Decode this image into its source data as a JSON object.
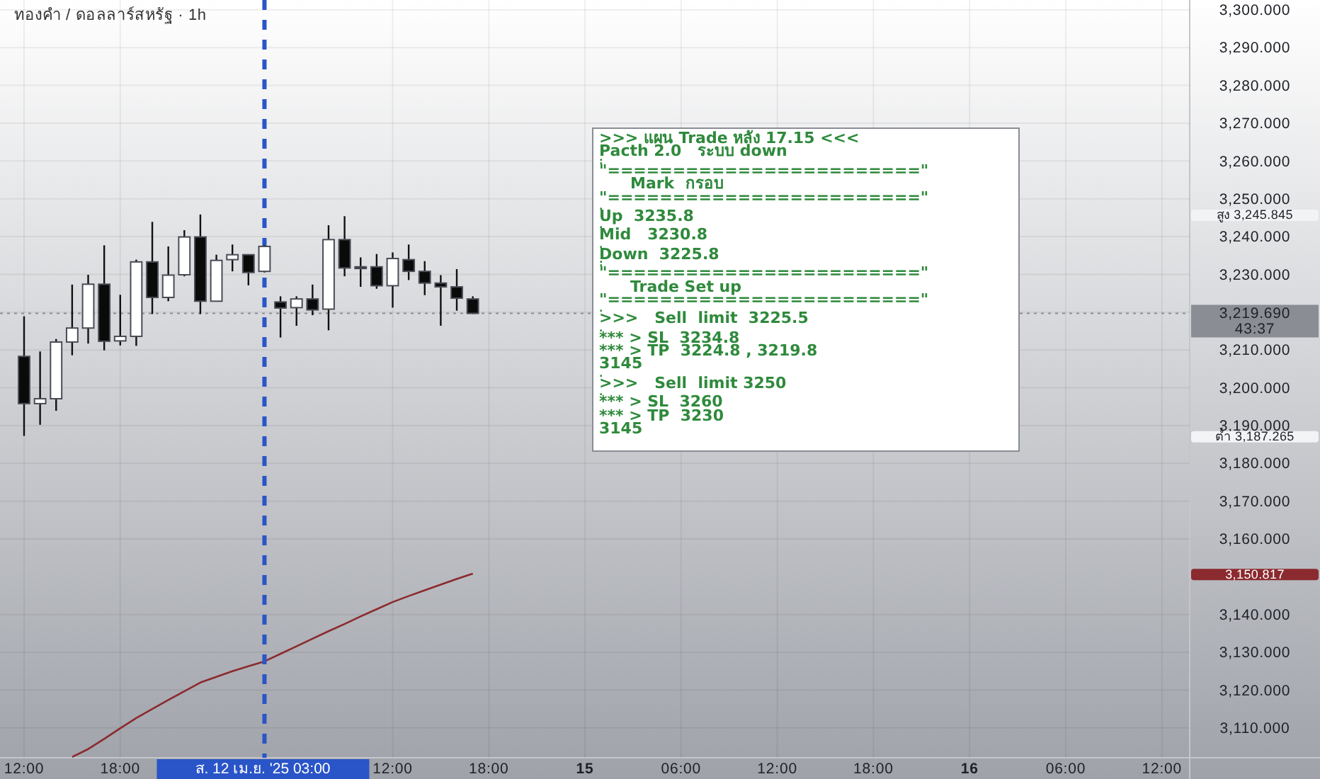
{
  "chart_data": {
    "type": "candlestick",
    "title": "ทองคำ / ดอลลาร์สหรัฐ · 1h",
    "categories": [
      "12:00",
      null,
      null,
      null,
      null,
      null,
      "18:00",
      null,
      null,
      null,
      null,
      null,
      null,
      null,
      null,
      "ส. 12 เม.ย. '25  03:00",
      null,
      null,
      null,
      null,
      null,
      null,
      null,
      "12:00",
      null,
      null,
      null,
      null,
      null,
      "18:00",
      null,
      null,
      null,
      null,
      null,
      "15",
      null,
      null,
      null,
      null,
      null,
      "06:00",
      null,
      null,
      null,
      null,
      null,
      "12:00",
      null,
      null,
      null,
      null,
      null,
      "18:00",
      null,
      null,
      null,
      null,
      null,
      "16",
      null,
      null,
      null,
      null,
      null,
      "06:00",
      null,
      null,
      null,
      null,
      null,
      "12:00",
      null
    ],
    "ohlc": [
      [
        3208.3,
        3218.9,
        3187.265,
        3195.8
      ],
      [
        3195.8,
        3209.6,
        3190.2,
        3197.1
      ],
      [
        3197.1,
        3212.9,
        3193.9,
        3212.1
      ],
      [
        3212.1,
        3227.3,
        3208.6,
        3215.8
      ],
      [
        3215.8,
        3229.9,
        3211.7,
        3227.4
      ],
      [
        3227.4,
        3237.7,
        3209.9,
        3212.3
      ],
      [
        3212.4,
        3224.6,
        3211.2,
        3213.6
      ],
      [
        3213.6,
        3233.9,
        3211.1,
        3233.3
      ],
      [
        3233.3,
        3243.9,
        3219.5,
        3223.9
      ],
      [
        3223.9,
        3237.4,
        3222.9,
        3229.8
      ],
      [
        3229.9,
        3241.7,
        3229.5,
        3239.9
      ],
      [
        3239.9,
        3245.845,
        3219.5,
        3222.9
      ],
      [
        3222.9,
        3235.2,
        3222.9,
        3233.7
      ],
      [
        3233.9,
        3237.9,
        3230.8,
        3235.2
      ],
      [
        3235.2,
        3235.2,
        3227.1,
        3230.5
      ],
      [
        3230.8,
        3237.7,
        3230.5,
        3237.4
      ],
      [
        3222.7,
        3224.2,
        3213.3,
        3221.1
      ],
      [
        3221.2,
        3224.2,
        3216.4,
        3223.5
      ],
      [
        3223.5,
        3227.3,
        3219.2,
        3220.6
      ],
      [
        3220.8,
        3243.0,
        3215.2,
        3239.2
      ],
      [
        3239.2,
        3245.4,
        3229.5,
        3231.7
      ],
      [
        3232.0,
        3234.5,
        3226.7,
        3231.7
      ],
      [
        3232.0,
        3235.4,
        3226.2,
        3227.0
      ],
      [
        3227.0,
        3235.8,
        3221.2,
        3234.2
      ],
      [
        3233.9,
        3237.9,
        3228.5,
        3230.8
      ],
      [
        3230.8,
        3233.5,
        3224.5,
        3227.7
      ],
      [
        3227.7,
        3229.8,
        3216.4,
        3226.7
      ],
      [
        3226.7,
        3231.4,
        3220.4,
        3223.7
      ],
      [
        3223.5,
        3224.2,
        3219.5,
        3219.69
      ],
      null,
      null,
      null,
      null,
      null,
      null,
      null,
      null,
      null,
      null,
      null,
      null,
      null,
      null,
      null,
      null,
      null,
      null,
      null,
      null,
      null,
      null,
      null,
      null,
      null,
      null,
      null,
      null,
      null,
      null,
      null,
      null,
      null,
      null,
      null,
      null,
      null,
      null,
      null,
      null,
      null,
      null,
      null,
      null
    ],
    "series": [
      {
        "type": "line",
        "color": "#8b2a2f",
        "values": [
          null,
          null,
          null,
          3102.3,
          3104.4,
          3107.1,
          3109.9,
          3112.6,
          3115.0,
          3117.4,
          3119.7,
          3122.0,
          3123.5,
          3125.0,
          3126.3,
          3127.6,
          3129.6,
          3131.6,
          3133.6,
          3135.6,
          3137.5,
          3139.5,
          3141.4,
          3143.3,
          3144.9,
          3146.4,
          3147.9,
          3149.4,
          3150.8,
          null,
          null,
          null,
          null,
          null,
          null,
          null,
          null,
          null,
          null,
          null,
          null,
          null,
          null,
          null,
          null,
          null,
          null,
          null,
          null,
          null,
          null,
          null,
          null,
          null,
          null,
          null,
          null,
          null,
          null,
          null,
          null,
          null,
          null,
          null,
          null,
          null,
          null,
          null,
          null,
          null,
          null,
          null,
          null
        ]
      }
    ],
    "ylim": [
      3102.1,
      3302.6
    ],
    "yticks": [
      {
        "value": 3110,
        "label": "3,110.000"
      },
      {
        "value": 3120,
        "label": "3,120.000"
      },
      {
        "value": 3130,
        "label": "3,130.000"
      },
      {
        "value": 3140,
        "label": "3,140.000"
      },
      {
        "value": 3150.817,
        "label": "3,150.817"
      },
      {
        "value": 3160,
        "label": "3,160.000"
      },
      {
        "value": 3170,
        "label": "3,170.000"
      },
      {
        "value": 3180,
        "label": "3,180.000"
      },
      {
        "value": 3187.265,
        "label": "ต่ำ 3,187.265"
      },
      {
        "value": 3190,
        "label": "3,190.000"
      },
      {
        "value": 3200,
        "label": "3,200.000"
      },
      {
        "value": 3210,
        "label": "3,210.000"
      },
      {
        "value": 3220,
        "label": null
      },
      {
        "value": 3230,
        "label": "3,230.000"
      },
      {
        "value": 3240,
        "label": "3,240.000"
      },
      {
        "value": 3245.845,
        "label": "สูง 3,245.845"
      },
      {
        "value": 3250,
        "label": "3,250.000"
      },
      {
        "value": 3260,
        "label": "3,260.000"
      },
      {
        "value": 3270,
        "label": "3,270.000"
      },
      {
        "value": 3280,
        "label": "3,280.000"
      },
      {
        "value": 3290,
        "label": "3,290.000"
      },
      {
        "value": 3300,
        "label": "3,300.000"
      }
    ],
    "grid": true,
    "ref_lines": [
      {
        "axis": "x",
        "value": "ส. 12 เม.ย. '25  03:00",
        "color": "#2a55c8",
        "line_style": "dashed"
      },
      {
        "axis": "y",
        "value": 3219.69,
        "label": "3,219.690\n43:37",
        "color": "#8a8d94",
        "line_style": "dotted"
      }
    ],
    "annotations": [
      ">>> แผน Trade หลัง 17.15 <<<",
      "Pacth 2.0   ระบบ down",
      ":",
      "\"========================\"",
      "Mark  กรอบ",
      "\"========================\"",
      ".",
      "Up  3235.8",
      ".",
      "Mid   3230.8",
      ".",
      "Down  3225.8",
      ":",
      "\"========================\"",
      "Trade Set up",
      "\"========================\"",
      ".",
      ">>>   Sell  limit  3225.5",
      ".",
      "*** > SL  3234.8",
      "*** > TP  3224.8 , 3219.8",
      "3145",
      ".",
      ">>>   Sell  limit 3250",
      ".",
      "*** > SL  3260",
      "*** > TP  3230",
      "3145"
    ]
  }
}
